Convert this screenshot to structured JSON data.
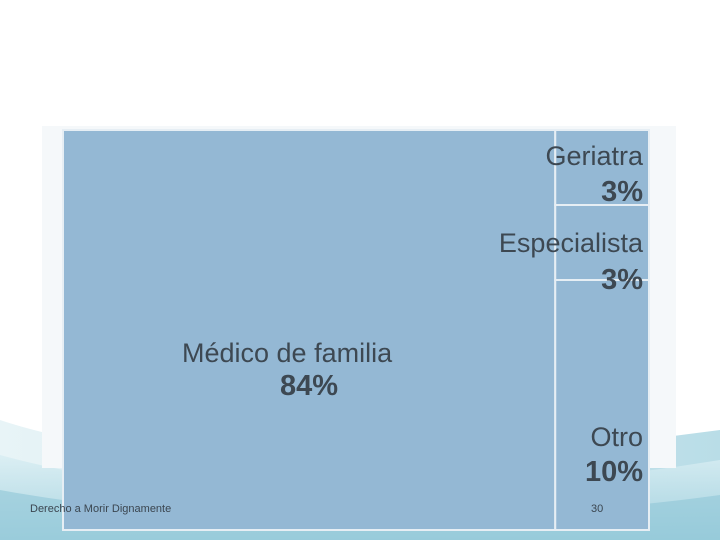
{
  "footer": {
    "left": "Derecho a Morir Dignamente",
    "page_number": "30"
  },
  "colors": {
    "tile_fill": "#94b8d4",
    "tile_border": "#e6eef4",
    "label_text": "#3d4852",
    "slide_wave": "#bfe0ea"
  },
  "chart_data": {
    "type": "treemap",
    "title": "",
    "value_unit": "%",
    "categories": [
      "Médico de familia",
      "Otro",
      "Geriatra",
      "Especialista"
    ],
    "values": [
      84,
      10,
      3,
      3
    ],
    "value_labels": [
      "84%",
      "10%",
      "3%",
      "3%"
    ]
  }
}
